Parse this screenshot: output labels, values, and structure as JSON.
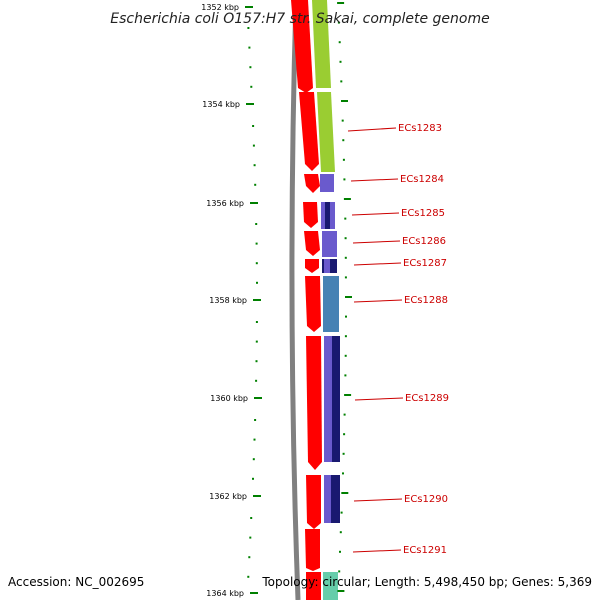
{
  "title": "Escherichia coli O157:H7 str. Sakai, complete genome",
  "accession": "Accession: NC_002695",
  "topology_info": "Topology: circular; Length: 5,498,450 bp; Genes: 5,369",
  "colors": {
    "forward_strand": "#ff0000",
    "backbone": "#808080",
    "ticks": "#008000",
    "gene_label": "#cc0000",
    "cog_lime": "#9acd32",
    "cog_slate": "#6a5acd",
    "cog_navy": "#191970",
    "cog_steel": "#4682b4",
    "cog_aqua": "#66cdaa"
  },
  "tick_labels": [
    "1352 kbp",
    "1354 kbp",
    "1356 kbp",
    "1358 kbp",
    "1360 kbp",
    "1362 kbp",
    "1364 kbp"
  ],
  "gene_labels": [
    "ECs1283",
    "ECs1284",
    "ECs1285",
    "ECs1286",
    "ECs1287",
    "ECs1288",
    "ECs1289",
    "ECs1290",
    "ECs1291"
  ]
}
